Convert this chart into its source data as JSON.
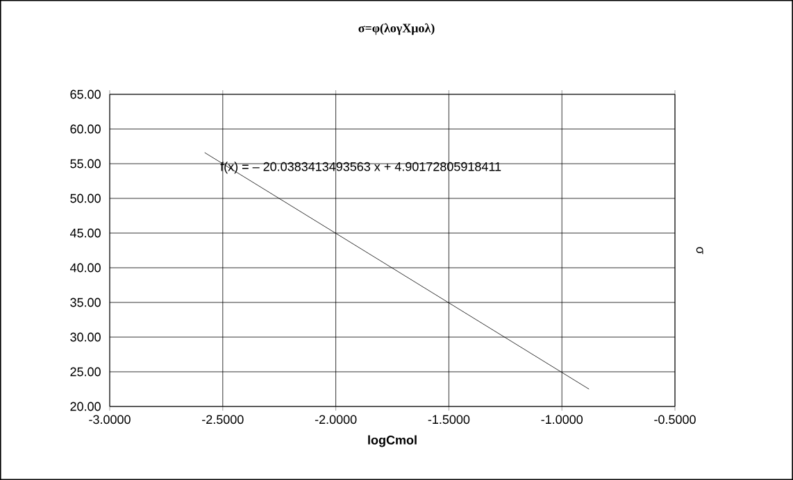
{
  "chart_data": {
    "type": "line",
    "title": "σ=φ(λογΧμολ)",
    "xlabel": "logCmol",
    "ylabel": "σ",
    "annotations": [
      "f(x) = – 20.0383413493563 x + 4.90172805918411"
    ],
    "series": [
      {
        "color": "#000000",
        "x": [
          -2.58,
          -0.88
        ],
        "values": [
          56.6,
          22.5
        ]
      }
    ],
    "xlim": [
      -3,
      -0.5
    ],
    "xticks": [
      {
        "value": -3,
        "label": "-3.0000"
      },
      {
        "value": -2.5,
        "label": "-2.5000"
      },
      {
        "value": -2,
        "label": "-2.0000"
      },
      {
        "value": -1.5,
        "label": "-1.5000"
      },
      {
        "value": -1,
        "label": "-1.0000"
      },
      {
        "value": -0.5,
        "label": "-0.5000"
      }
    ],
    "ylim": [
      20,
      65
    ],
    "yticks": [
      {
        "value": 20,
        "label": "20.00"
      },
      {
        "value": 25,
        "label": "25.00"
      },
      {
        "value": 30,
        "label": "30.00"
      },
      {
        "value": 35,
        "label": "35.00"
      },
      {
        "value": 40,
        "label": "40.00"
      },
      {
        "value": 45,
        "label": "45.00"
      },
      {
        "value": 50,
        "label": "50.00"
      },
      {
        "value": 55,
        "label": "55.00"
      },
      {
        "value": 60,
        "label": "60.00"
      },
      {
        "value": 65,
        "label": "65.00"
      }
    ],
    "grid": true,
    "marker": "none",
    "line_style": "solid"
  }
}
